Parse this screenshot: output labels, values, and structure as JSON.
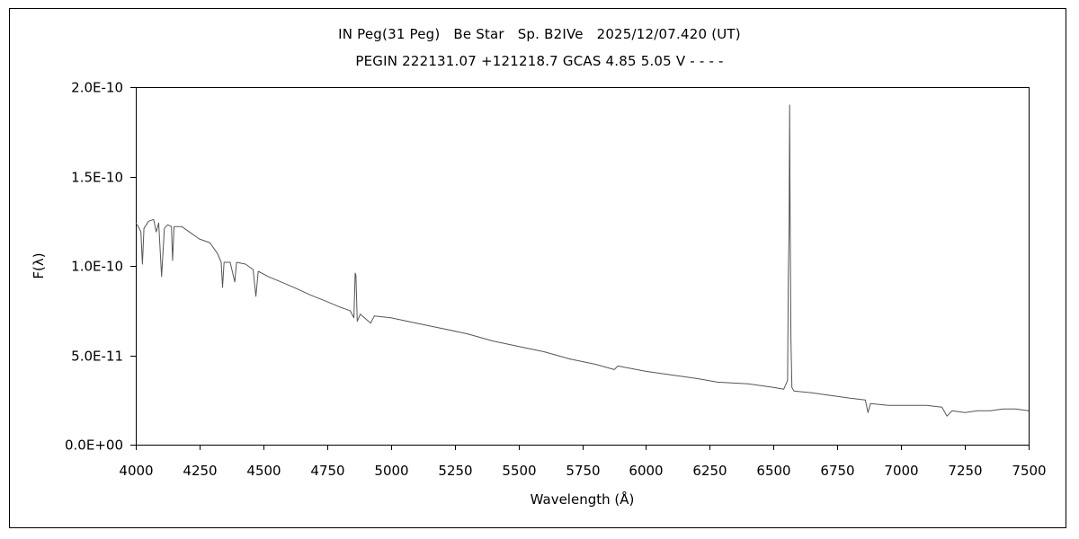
{
  "header": {
    "title_line1": "IN Peg(31 Peg)   Be Star   Sp. B2IVe   2025/12/07.420 (UT)",
    "title_line2": "PEGIN 222131.07 +121218.7 GCAS 4.85 5.05 V - - - -"
  },
  "chart_data": {
    "type": "line",
    "title": "IN Peg(31 Peg)   Be Star   Sp. B2IVe   2025/12/07.420 (UT)",
    "subtitle": "PEGIN 222131.07 +121218.7 GCAS 4.85 5.05 V - - - -",
    "xlabel": "Wavelength (Å)",
    "ylabel": "F(λ)",
    "xlim": [
      4000,
      7500
    ],
    "ylim": [
      0,
      2e-10
    ],
    "x_ticks": [
      4000,
      4250,
      4500,
      4750,
      5000,
      5250,
      5500,
      5750,
      6000,
      6250,
      6500,
      6750,
      7000,
      7250,
      7500
    ],
    "y_ticks": [
      {
        "value": 0,
        "label": "0.0E+00"
      },
      {
        "value": 5e-11,
        "label": "5.0E-11"
      },
      {
        "value": 1e-10,
        "label": "1.0E-10"
      },
      {
        "value": 1.5e-10,
        "label": "1.5E-10"
      },
      {
        "value": 2e-10,
        "label": "2.0E-10"
      }
    ],
    "grid": false,
    "line_color": "#555555",
    "series": [
      {
        "points": [
          [
            4000,
            1.24e-10
          ],
          [
            4010,
            1.22e-10
          ],
          [
            4020,
            1.19e-10
          ],
          [
            4026,
            1.01e-10
          ],
          [
            4032,
            1.21e-10
          ],
          [
            4050,
            1.25e-10
          ],
          [
            4070,
            1.26e-10
          ],
          [
            4080,
            1.19e-10
          ],
          [
            4090,
            1.24e-10
          ],
          [
            4101,
            9.4e-11
          ],
          [
            4112,
            1.21e-10
          ],
          [
            4125,
            1.23e-10
          ],
          [
            4140,
            1.22e-10
          ],
          [
            4144,
            1.03e-10
          ],
          [
            4150,
            1.22e-10
          ],
          [
            4180,
            1.22e-10
          ],
          [
            4210,
            1.19e-10
          ],
          [
            4250,
            1.15e-10
          ],
          [
            4290,
            1.13e-10
          ],
          [
            4320,
            1.07e-10
          ],
          [
            4335,
            1.02e-10
          ],
          [
            4340,
            8.8e-11
          ],
          [
            4346,
            1.02e-10
          ],
          [
            4370,
            1.02e-10
          ],
          [
            4388,
            9.1e-11
          ],
          [
            4395,
            1.02e-10
          ],
          [
            4430,
            1.01e-10
          ],
          [
            4460,
            9.8e-11
          ],
          [
            4471,
            8.3e-11
          ],
          [
            4480,
            9.7e-11
          ],
          [
            4520,
            9.4e-11
          ],
          [
            4570,
            9.1e-11
          ],
          [
            4620,
            8.8e-11
          ],
          [
            4680,
            8.4e-11
          ],
          [
            4750,
            8e-11
          ],
          [
            4800,
            7.7e-11
          ],
          [
            4840,
            7.5e-11
          ],
          [
            4855,
            7.1e-11
          ],
          [
            4860,
            9.6e-11
          ],
          [
            4863,
            9.5e-11
          ],
          [
            4868,
            6.9e-11
          ],
          [
            4880,
            7.3e-11
          ],
          [
            4921,
            6.8e-11
          ],
          [
            4935,
            7.2e-11
          ],
          [
            5000,
            7.1e-11
          ],
          [
            5100,
            6.8e-11
          ],
          [
            5200,
            6.5e-11
          ],
          [
            5300,
            6.2e-11
          ],
          [
            5400,
            5.8e-11
          ],
          [
            5500,
            5.5e-11
          ],
          [
            5600,
            5.2e-11
          ],
          [
            5700,
            4.8e-11
          ],
          [
            5800,
            4.5e-11
          ],
          [
            5876,
            4.2e-11
          ],
          [
            5890,
            4.4e-11
          ],
          [
            6000,
            4.1e-11
          ],
          [
            6100,
            3.9e-11
          ],
          [
            6200,
            3.7e-11
          ],
          [
            6280,
            3.5e-11
          ],
          [
            6400,
            3.4e-11
          ],
          [
            6500,
            3.2e-11
          ],
          [
            6540,
            3.1e-11
          ],
          [
            6555,
            3.6e-11
          ],
          [
            6558,
            9.2e-11
          ],
          [
            6561,
            1.22e-10
          ],
          [
            6563,
            1.9e-10
          ],
          [
            6565,
            1.3e-10
          ],
          [
            6568,
            6e-11
          ],
          [
            6572,
            3.2e-11
          ],
          [
            6580,
            3e-11
          ],
          [
            6650,
            2.9e-11
          ],
          [
            6700,
            2.8e-11
          ],
          [
            6800,
            2.6e-11
          ],
          [
            6860,
            2.5e-11
          ],
          [
            6870,
            1.8e-11
          ],
          [
            6880,
            2.3e-11
          ],
          [
            6950,
            2.2e-11
          ],
          [
            7000,
            2.2e-11
          ],
          [
            7100,
            2.2e-11
          ],
          [
            7160,
            2.1e-11
          ],
          [
            7180,
            1.6e-11
          ],
          [
            7200,
            1.9e-11
          ],
          [
            7250,
            1.8e-11
          ],
          [
            7300,
            1.9e-11
          ],
          [
            7350,
            1.9e-11
          ],
          [
            7400,
            2e-11
          ],
          [
            7450,
            2e-11
          ],
          [
            7500,
            1.9e-11
          ]
        ]
      }
    ]
  }
}
